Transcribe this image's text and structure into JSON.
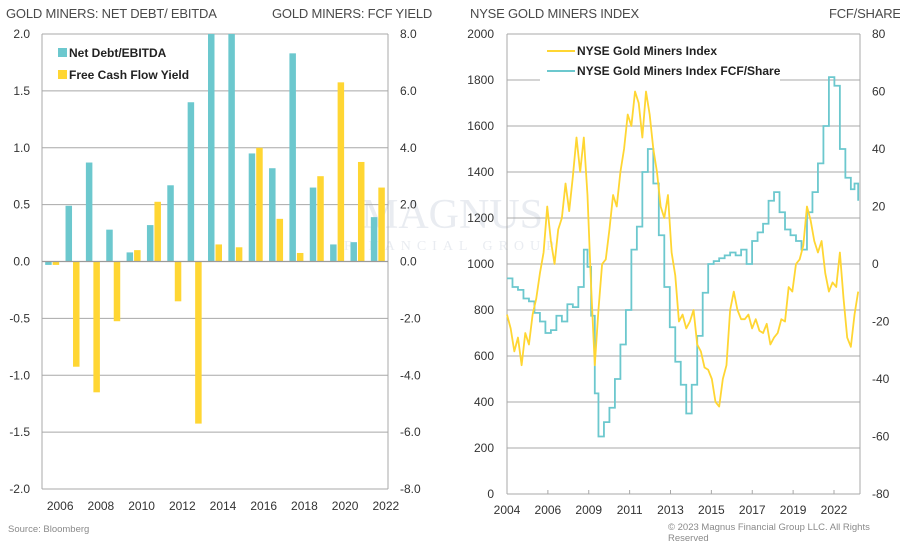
{
  "titles": {
    "left_chart_left": "GOLD MINERS: NET DEBT/ EBITDA",
    "left_chart_right": "GOLD MINERS: FCF YIELD",
    "right_chart_left": "NYSE GOLD MINERS INDEX",
    "right_chart_right": "FCF/SHARE"
  },
  "footer": {
    "source": "Source: Bloomberg",
    "copyright": "© 2023 Magnus Financial Group LLC. All Rights Reserved"
  },
  "watermark": {
    "line1": "MAGNUS",
    "line2": "FINANCIAL GROUP"
  },
  "colors": {
    "teal": "#6cc8ce",
    "yellow": "#ffd633",
    "grid": "#a8a8a8"
  },
  "chart_data": [
    {
      "type": "bar",
      "title": "GOLD MINERS: NET DEBT/ EBITDA vs GOLD MINERS: FCF YIELD",
      "xlabel": "",
      "categories": [
        "2006",
        "2007",
        "2008",
        "2009",
        "2010",
        "2011",
        "2012",
        "2013",
        "2014",
        "2015",
        "2016",
        "2017",
        "2018",
        "2019",
        "2020",
        "2021",
        "2022"
      ],
      "x_tick_labels": [
        "2006",
        "2008",
        "2010",
        "2012",
        "2014",
        "2016",
        "2018",
        "2020",
        "2022"
      ],
      "y_left": {
        "label": "Net Debt/EBITDA",
        "range": [
          -2.0,
          2.0
        ],
        "ticks": [
          "2.0",
          "1.5",
          "1.0",
          "0.5",
          "0.0",
          "-0.5",
          "-1.0",
          "-1.5",
          "-2.0"
        ]
      },
      "y_right": {
        "label": "FCF Yield",
        "range": [
          -8.0,
          8.0
        ],
        "ticks": [
          "8.0",
          "6.0",
          "4.0",
          "2.0",
          "0.0",
          "-2.0",
          "-4.0",
          "-6.0",
          "-8.0"
        ]
      },
      "grid": true,
      "legend_position": "top-left",
      "series": [
        {
          "name": "Net Debt/EBITDA",
          "axis": "left",
          "color": "#6cc8ce",
          "values": [
            -0.03,
            0.49,
            0.87,
            0.28,
            0.08,
            0.32,
            0.67,
            1.4,
            2.0,
            2.0,
            0.95,
            0.82,
            1.83,
            0.65,
            0.15,
            0.17,
            0.39
          ]
        },
        {
          "name": "Free Cash Flow Yield",
          "axis": "right",
          "color": "#ffd633",
          "values": [
            -0.12,
            -3.7,
            -4.6,
            -2.1,
            0.4,
            2.1,
            -1.4,
            -5.7,
            0.6,
            0.5,
            4.0,
            1.5,
            0.3,
            3.0,
            6.3,
            3.5,
            2.6
          ]
        }
      ]
    },
    {
      "type": "line",
      "title": "NYSE GOLD MINERS INDEX vs FCF/SHARE",
      "xlabel": "",
      "x_range": [
        2004.0,
        2023.3
      ],
      "x_tick_labels": [
        "2004",
        "2006",
        "2009",
        "2011",
        "2013",
        "2015",
        "2017",
        "2019",
        "2022"
      ],
      "y_left": {
        "label": "NYSE Gold Miners Index",
        "range": [
          0,
          2000
        ],
        "ticks": [
          "2000",
          "1800",
          "1600",
          "1400",
          "1200",
          "1000",
          "800",
          "600",
          "400",
          "200",
          "0"
        ]
      },
      "y_right": {
        "label": "FCF/Share",
        "range": [
          -80,
          80
        ],
        "ticks": [
          "80",
          "60",
          "40",
          "20",
          "0",
          "-20",
          "-40",
          "-60",
          "-80"
        ]
      },
      "grid": true,
      "legend_position": "top-left",
      "series": [
        {
          "name": "NYSE Gold Miners Index",
          "axis": "left",
          "color": "#ffd633",
          "x": [
            2004.0,
            2004.2,
            2004.4,
            2004.6,
            2004.8,
            2005.0,
            2005.2,
            2005.4,
            2005.6,
            2005.8,
            2006.0,
            2006.2,
            2006.4,
            2006.6,
            2006.8,
            2007.0,
            2007.2,
            2007.4,
            2007.6,
            2007.8,
            2008.0,
            2008.2,
            2008.4,
            2008.6,
            2008.8,
            2009.0,
            2009.2,
            2009.4,
            2009.6,
            2009.8,
            2010.0,
            2010.2,
            2010.4,
            2010.6,
            2010.8,
            2011.0,
            2011.2,
            2011.4,
            2011.6,
            2011.8,
            2012.0,
            2012.2,
            2012.4,
            2012.6,
            2012.8,
            2013.0,
            2013.2,
            2013.4,
            2013.6,
            2013.8,
            2014.0,
            2014.2,
            2014.4,
            2014.6,
            2014.8,
            2015.0,
            2015.2,
            2015.4,
            2015.6,
            2015.8,
            2016.0,
            2016.2,
            2016.4,
            2016.6,
            2016.8,
            2017.0,
            2017.2,
            2017.4,
            2017.6,
            2017.8,
            2018.0,
            2018.2,
            2018.4,
            2018.6,
            2018.8,
            2019.0,
            2019.2,
            2019.4,
            2019.6,
            2019.8,
            2020.0,
            2020.2,
            2020.4,
            2020.6,
            2020.8,
            2021.0,
            2021.2,
            2021.4,
            2021.6,
            2021.8,
            2022.0,
            2022.2,
            2022.4,
            2022.6,
            2022.8,
            2023.0,
            2023.2
          ],
          "values": [
            780,
            720,
            620,
            680,
            560,
            700,
            650,
            780,
            850,
            960,
            1050,
            1250,
            1100,
            1000,
            1150,
            1200,
            1350,
            1230,
            1380,
            1550,
            1400,
            1550,
            1300,
            900,
            560,
            800,
            1000,
            1020,
            1150,
            1300,
            1250,
            1400,
            1500,
            1650,
            1600,
            1750,
            1700,
            1550,
            1750,
            1650,
            1500,
            1400,
            1250,
            1200,
            1300,
            1050,
            950,
            750,
            780,
            720,
            750,
            800,
            650,
            620,
            550,
            540,
            500,
            400,
            380,
            500,
            560,
            800,
            880,
            800,
            760,
            760,
            780,
            720,
            760,
            710,
            700,
            740,
            650,
            680,
            700,
            760,
            750,
            900,
            880,
            1000,
            1020,
            1080,
            1250,
            1190,
            1100,
            1050,
            1100,
            960,
            880,
            920,
            900,
            1050,
            850,
            680,
            640,
            780,
            880
          ]
        },
        {
          "name": "NYSE Gold Miners Index FCF/Share",
          "axis": "right",
          "color": "#6cc8ce",
          "x": [
            2004.0,
            2004.3,
            2004.6,
            2004.9,
            2005.2,
            2005.5,
            2005.8,
            2006.1,
            2006.4,
            2006.7,
            2007.0,
            2007.3,
            2007.6,
            2007.9,
            2008.2,
            2008.4,
            2008.6,
            2008.8,
            2009.0,
            2009.3,
            2009.6,
            2009.9,
            2010.2,
            2010.5,
            2010.8,
            2011.1,
            2011.4,
            2011.7,
            2012.0,
            2012.3,
            2012.6,
            2012.9,
            2013.2,
            2013.5,
            2013.8,
            2014.1,
            2014.4,
            2014.7,
            2015.0,
            2015.3,
            2015.6,
            2015.9,
            2016.2,
            2016.5,
            2016.8,
            2017.1,
            2017.4,
            2017.7,
            2018.0,
            2018.3,
            2018.6,
            2018.9,
            2019.2,
            2019.5,
            2019.8,
            2020.1,
            2020.4,
            2020.7,
            2021.0,
            2021.3,
            2021.6,
            2021.9,
            2022.2,
            2022.5,
            2022.8,
            2023.0,
            2023.2
          ],
          "values": [
            -5,
            -8,
            -9,
            -12,
            -13,
            -17,
            -20,
            -24,
            -23,
            -18,
            -20,
            -14,
            -15,
            -8,
            5,
            -1,
            -18,
            -45,
            -60,
            -55,
            -50,
            -40,
            -28,
            -16,
            5,
            13,
            32,
            40,
            28,
            10,
            -8,
            -22,
            -34,
            -42,
            -52,
            -42,
            -25,
            -10,
            0,
            1,
            2,
            3,
            4,
            3,
            5,
            0,
            8,
            11,
            14,
            22,
            25,
            18,
            12,
            10,
            8,
            5,
            18,
            25,
            35,
            48,
            65,
            62,
            40,
            30,
            26,
            28,
            22
          ]
        }
      ]
    }
  ]
}
